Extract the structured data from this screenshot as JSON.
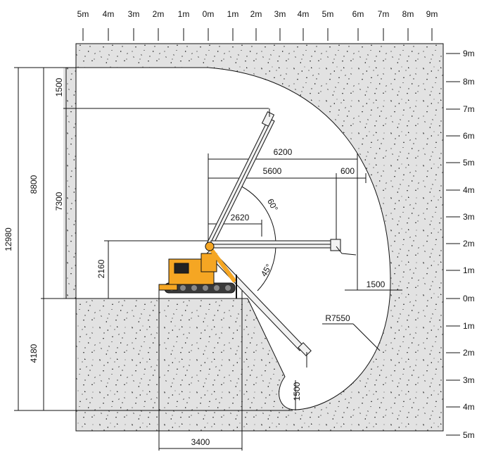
{
  "colors": {
    "concrete": "#e2e2e2",
    "speckle": "#2a2a2a",
    "machine_yellow": "#f5a623",
    "machine_dark": "#3a3a3a",
    "line": "#111111"
  },
  "scale_top": [
    "5m",
    "4m",
    "3m",
    "2m",
    "1m",
    "0m",
    "1m",
    "2m",
    "3m",
    "4m",
    "5m",
    "6m",
    "7m",
    "8m",
    "9m"
  ],
  "scale_right": [
    "9m",
    "8m",
    "7m",
    "6m",
    "5m",
    "4m",
    "3m",
    "2m",
    "1m",
    "0m",
    "1m",
    "2m",
    "3m",
    "4m",
    "5m"
  ],
  "dimensions": {
    "total_height": "12980",
    "height_above": "8800",
    "height_below": "4180",
    "top_gap": "1500",
    "reach_height": "7300",
    "pivot_height": "2160",
    "reach_6200": "6200",
    "reach_5600": "5600",
    "reach_600": "600",
    "reach_2620": "2620",
    "side_1500": "1500",
    "bottom_1500": "1500",
    "track_width": "3400",
    "radius": "R7550"
  },
  "angles": {
    "upper": "60°",
    "lower": "45°"
  },
  "icons": {
    "machine": "tracked-spider-crane-icon"
  }
}
